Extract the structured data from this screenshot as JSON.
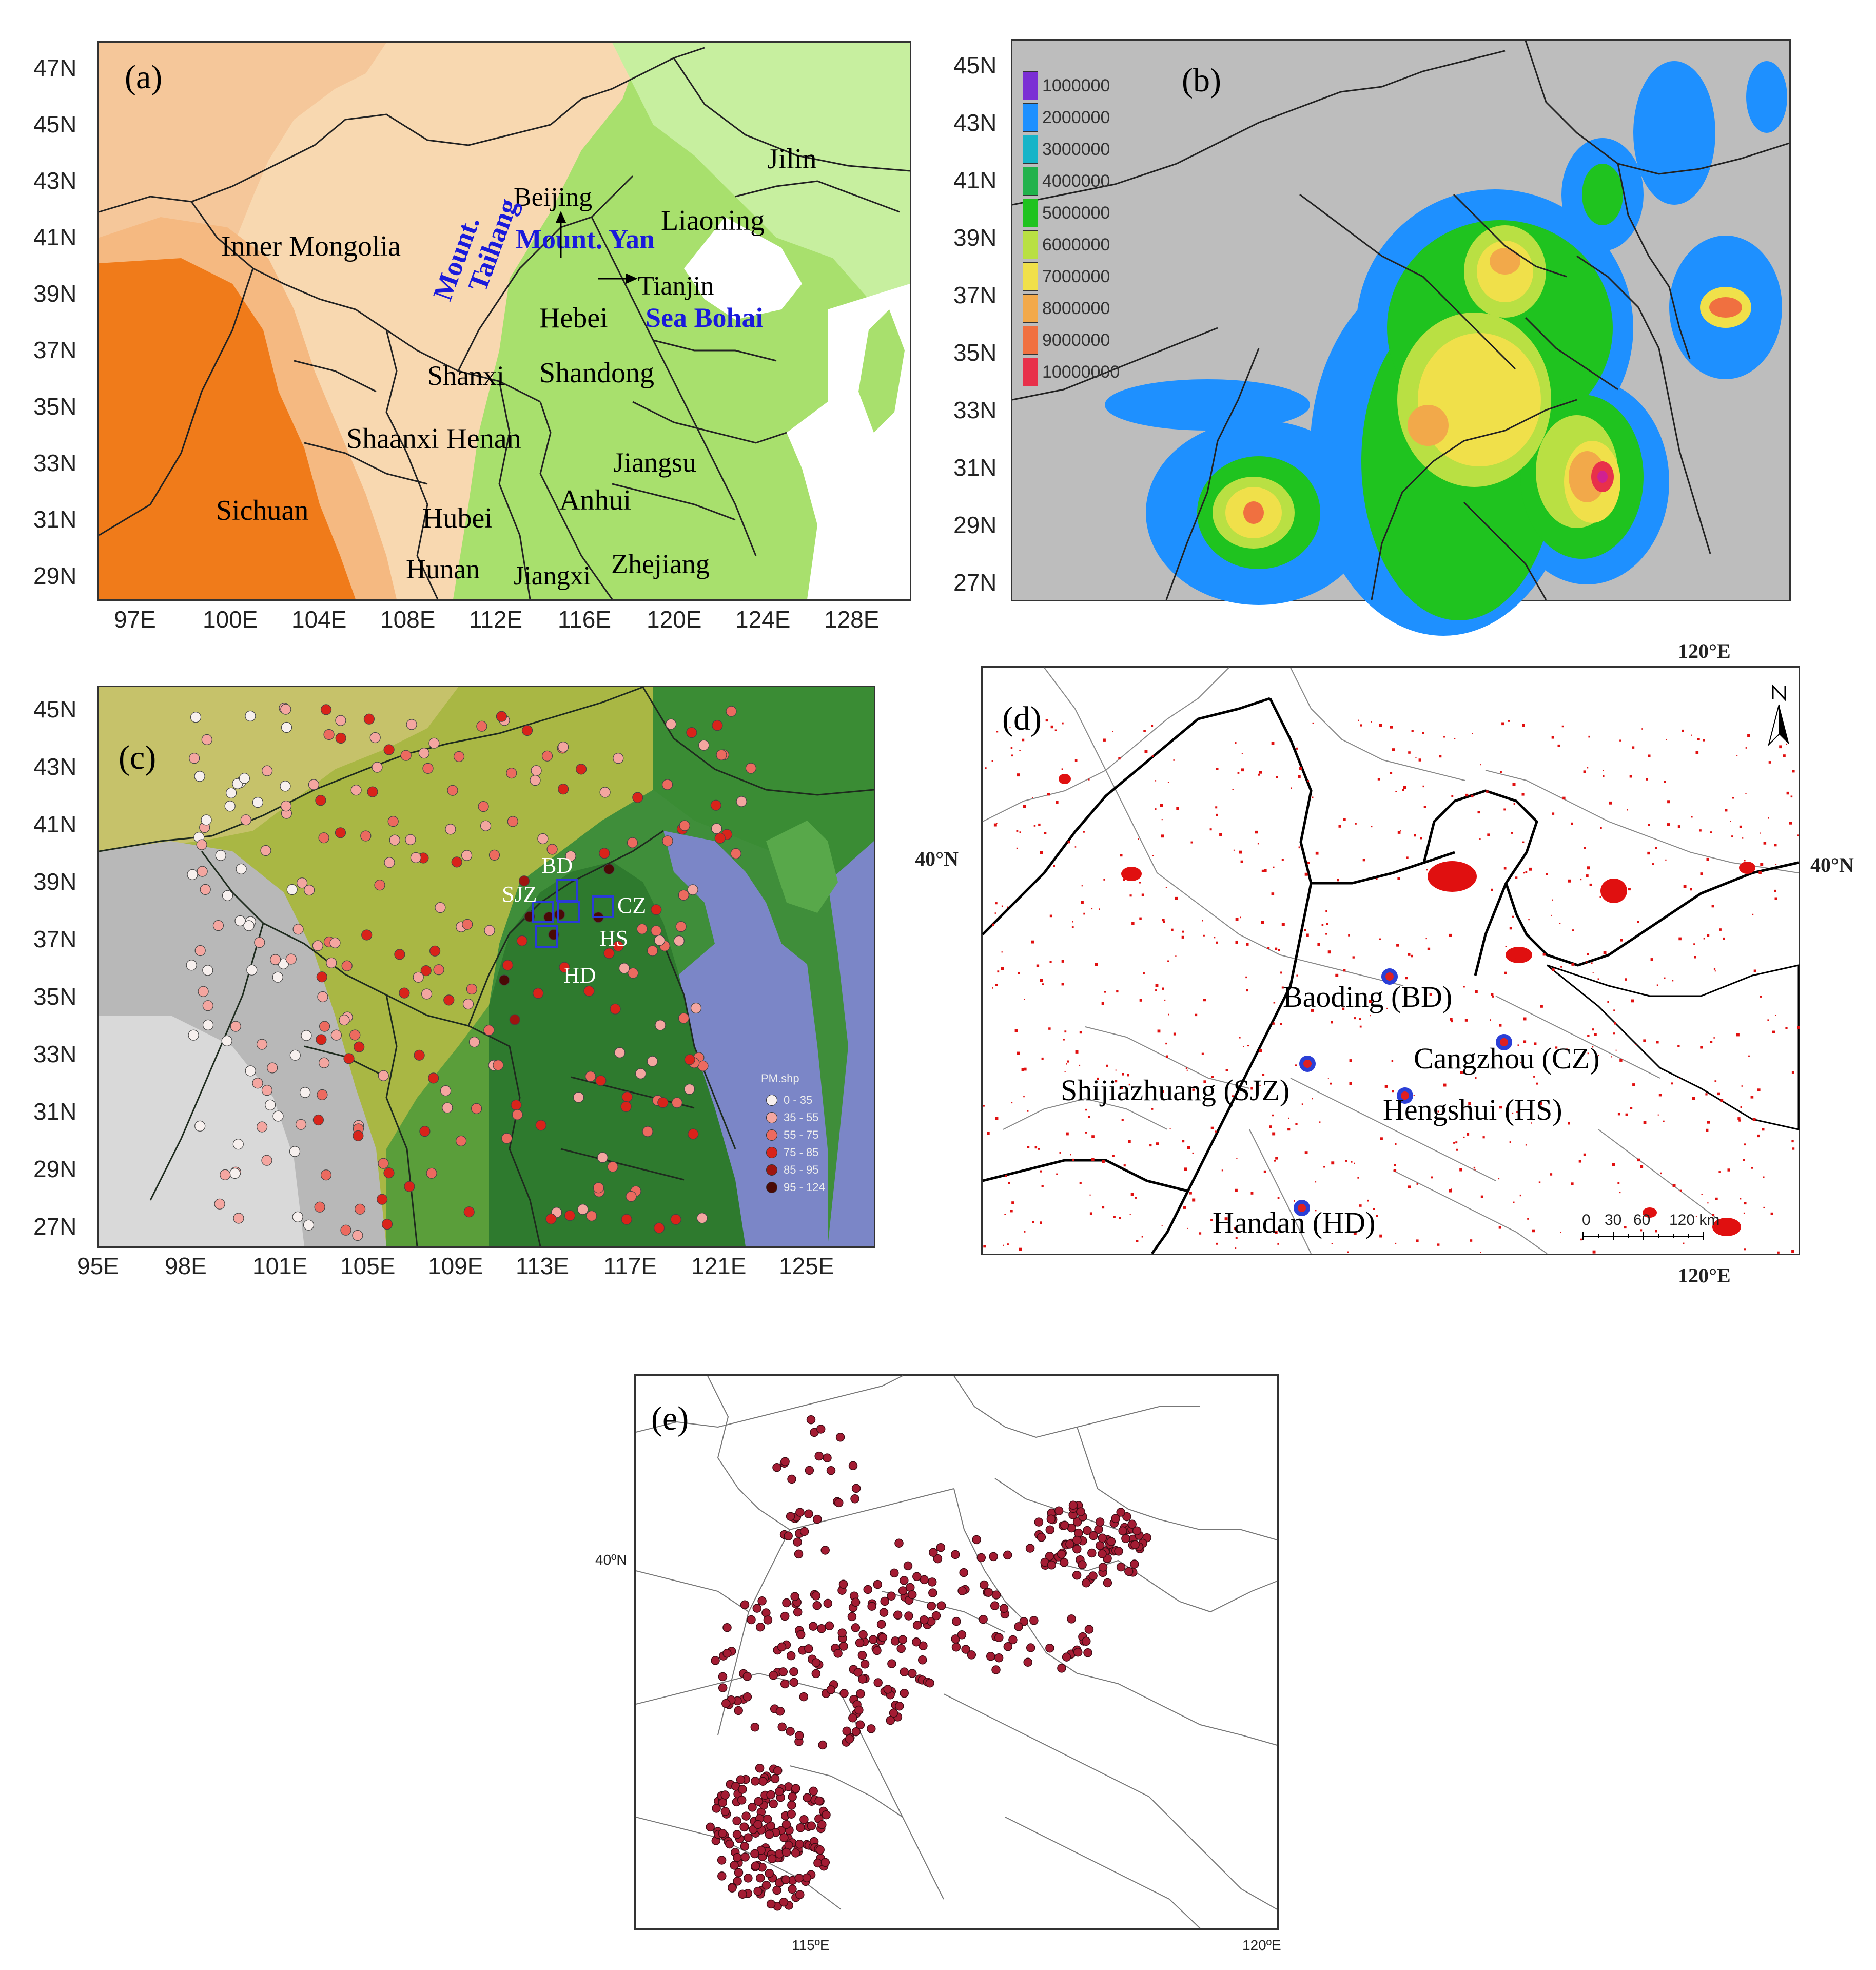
{
  "panel_a": {
    "label": "(a)",
    "lat_ticks": [
      "47N",
      "45N",
      "43N",
      "41N",
      "39N",
      "37N",
      "35N",
      "33N",
      "31N",
      "29N"
    ],
    "lon_ticks": [
      "97E",
      "100E",
      "104E",
      "108E",
      "112E",
      "116E",
      "120E",
      "124E",
      "128E"
    ],
    "places": {
      "beijing": "Beijing",
      "mount_yan": "Mount. Yan",
      "inner_mongolia": "Inner Mongolia",
      "liaoning": "Liaoning",
      "jilin": "Jilin",
      "mount_taihang_1": "Mount.",
      "mount_taihang_2": "Taihang",
      "tianjin": "Tianjin",
      "hebei": "Hebei",
      "sea_bohai": "Sea Bohai",
      "shanxi": "Shanxi",
      "shandong": "Shandong",
      "shaanxi_henan": "Shaanxi Henan",
      "jiangsu": "Jiangsu",
      "sichuan": "Sichuan",
      "hubei": "Hubei",
      "anhui": "Anhui",
      "hunan": "Hunan",
      "jiangxi": "Jiangxi",
      "zhejiang": "Zhejiang"
    },
    "colors": {
      "low_land": "#a8e06d",
      "plain": "#c7ef9f",
      "plateau": "#f8d8b0",
      "mid": "#f5b981",
      "high": "#f07b1a",
      "sea": "#ffffff"
    }
  },
  "panel_b": {
    "label": "(b)",
    "lat_ticks": [
      "45N",
      "43N",
      "41N",
      "39N",
      "37N",
      "35N",
      "33N",
      "31N",
      "29N",
      "27N"
    ],
    "legend": [
      {
        "value": "1000000",
        "color": "#7b2fd4"
      },
      {
        "value": "2000000",
        "color": "#1e90ff"
      },
      {
        "value": "3000000",
        "color": "#16b4c8"
      },
      {
        "value": "4000000",
        "color": "#22b24c"
      },
      {
        "value": "5000000",
        "color": "#1fc31f"
      },
      {
        "value": "6000000",
        "color": "#b9e043"
      },
      {
        "value": "7000000",
        "color": "#f0e04a"
      },
      {
        "value": "8000000",
        "color": "#f2a94a"
      },
      {
        "value": "9000000",
        "color": "#f07040"
      },
      {
        "value": "10000000",
        "color": "#e8304a"
      }
    ],
    "background": "#bdbdbd"
  },
  "panel_c": {
    "label": "(c)",
    "lat_ticks": [
      "45N",
      "43N",
      "41N",
      "39N",
      "37N",
      "35N",
      "33N",
      "31N",
      "29N",
      "27N"
    ],
    "lon_ticks": [
      "95E",
      "98E",
      "101E",
      "105E",
      "109E",
      "113E",
      "117E",
      "121E",
      "125E"
    ],
    "sites": {
      "bd": "BD",
      "sjz": "SJZ",
      "cz": "CZ",
      "hs": "HS",
      "hd": "HD"
    },
    "legend_title": "PM.shp",
    "legend": [
      {
        "range": "0 - 35",
        "color": "#f7f0ee"
      },
      {
        "range": "35 - 55",
        "color": "#f4a6a0"
      },
      {
        "range": "55 - 75",
        "color": "#ec6a5f"
      },
      {
        "range": "75 - 85",
        "color": "#d9231a"
      },
      {
        "range": "85 - 95",
        "color": "#9e1510"
      },
      {
        "range": "95 - 124",
        "color": "#4a0a06"
      }
    ]
  },
  "panel_d": {
    "label": "(d)",
    "top_lon": "120°E",
    "bottom_lon": "120°E",
    "left_lat": "40°N",
    "right_lat": "40°N",
    "cities": {
      "bd": "Baoding (BD)",
      "cz": "Cangzhou (CZ)",
      "sjz": "Shijiazhuang (SJZ)",
      "hs": "Hengshui (HS)",
      "hd": "Handan (HD)"
    },
    "scale": {
      "t0": "0",
      "t1": "30",
      "t2": "60",
      "t3": "120 km"
    }
  },
  "panel_e": {
    "label": "(e)",
    "lat_tick": "40ºN",
    "lon_ticks": [
      "115ºE",
      "120ºE"
    ]
  }
}
